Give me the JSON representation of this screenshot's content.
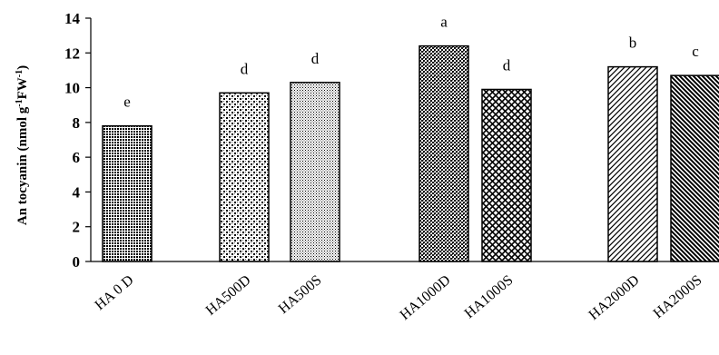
{
  "chart_data": {
    "type": "bar",
    "title": "",
    "xlabel": "",
    "ylabel": "",
    "ylabel_parts": [
      "An tocyanin (nmol g",
      "-1",
      "FW",
      "-1",
      ")"
    ],
    "ylim": [
      0,
      14
    ],
    "yticks": [
      "0",
      "2",
      "4",
      "6",
      "8",
      "10",
      "12",
      "14"
    ],
    "grid": false,
    "legend": "none",
    "categories": [
      "HA 0 D",
      "HA500D",
      "HA500S",
      "HA1000D",
      "HA1000S",
      "HA2000D",
      "HA2000S"
    ],
    "values": [
      7.8,
      9.7,
      10.3,
      12.4,
      9.9,
      11.2,
      10.7
    ],
    "significance_labels": [
      "e",
      "d",
      "d",
      "a",
      "d",
      "b",
      "c"
    ],
    "fill_patterns": [
      "dense-dark-dots",
      "checker-dots",
      "fine-dots",
      "dense-dots",
      "crosshatch",
      "diagonal-lines",
      "dense-diagonal-lines"
    ],
    "colors": {
      "bar_stroke": "#000000",
      "pattern_ink": "#000000",
      "background": "#ffffff"
    }
  }
}
